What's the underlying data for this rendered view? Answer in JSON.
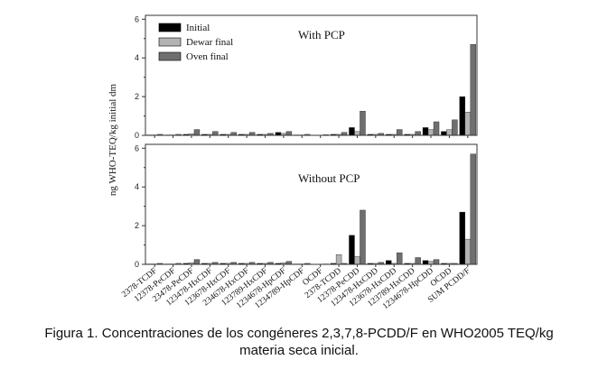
{
  "caption": {
    "line1": "Figura 1. Concentraciones de los congéneres 2,3,7,8-PCDD/F en WHO2005 TEQ/kg",
    "line2": "materia seca inicial."
  },
  "chart_data": [
    {
      "type": "bar",
      "title": "With PCP",
      "ylabel": "ng WHO-TEQ/kg initial dm",
      "ylim": [
        0,
        6.2
      ],
      "yticks": [
        0,
        2,
        4,
        6
      ],
      "grid": false,
      "legend_position": "top-left",
      "categories": [
        "2378-TCDF",
        "12378-PeCDF",
        "23478-PeCDF",
        "123478-HxCDF",
        "123678-HxCDF",
        "234678-HxCDF",
        "123789-HxCDF",
        "1234678-HpCDF",
        "1234789-HpCDF",
        "OCDF",
        "2378-TCDD",
        "12378-PeCDD",
        "123478-HxCDD",
        "123678-HxCDD",
        "123789-HxCDD",
        "1234678-HpCDD",
        "OCDD",
        "SUM PCDD/F"
      ],
      "series": [
        {
          "name": "Initial",
          "color": "#000000",
          "values": [
            0.02,
            0.02,
            0.05,
            0.05,
            0.05,
            0.05,
            0.05,
            0.15,
            0.02,
            0.0,
            0.05,
            0.4,
            0.05,
            0.05,
            0.05,
            0.4,
            0.2,
            2.0
          ]
        },
        {
          "name": "Dewar final",
          "color": "#b3b3b3",
          "values": [
            0.02,
            0.02,
            0.08,
            0.05,
            0.05,
            0.05,
            0.05,
            0.1,
            0.02,
            0.0,
            0.05,
            0.2,
            0.05,
            0.05,
            0.05,
            0.3,
            0.3,
            1.2
          ]
        },
        {
          "name": "Oven final",
          "color": "#6f6f6f",
          "values": [
            0.05,
            0.05,
            0.3,
            0.2,
            0.15,
            0.15,
            0.1,
            0.2,
            0.05,
            0.03,
            0.15,
            1.25,
            0.1,
            0.3,
            0.2,
            0.7,
            0.8,
            4.7
          ]
        }
      ]
    },
    {
      "type": "bar",
      "title": "Without PCP",
      "ylabel": "",
      "ylim": [
        0,
        6.2
      ],
      "yticks": [
        0,
        2,
        4,
        6
      ],
      "grid": false,
      "categories": [
        "2378-TCDF",
        "12378-PeCDF",
        "23478-PeCDF",
        "123478-HxCDF",
        "123678-HxCDF",
        "234678-HxCDF",
        "123789-HxCDF",
        "1234678-HpCDF",
        "1234789-HpCDF",
        "OCDF",
        "2378-TCDD",
        "12378-PeCDD",
        "123478-HxCDD",
        "123678-HxCDD",
        "123789-HxCDD",
        "1234678-HpCDD",
        "OCDD",
        "SUM PCDD/F"
      ],
      "series": [
        {
          "name": "Initial",
          "color": "#000000",
          "values": [
            0.02,
            0.02,
            0.05,
            0.05,
            0.05,
            0.05,
            0.05,
            0.05,
            0.02,
            0.0,
            0.05,
            1.5,
            0.05,
            0.2,
            0.05,
            0.2,
            0.05,
            2.7
          ]
        },
        {
          "name": "Dewar final",
          "color": "#b3b3b3",
          "values": [
            0.02,
            0.02,
            0.08,
            0.05,
            0.05,
            0.05,
            0.05,
            0.08,
            0.02,
            0.0,
            0.5,
            0.4,
            0.05,
            0.05,
            0.05,
            0.15,
            0.05,
            1.3
          ]
        },
        {
          "name": "Oven final",
          "color": "#6f6f6f",
          "values": [
            0.05,
            0.05,
            0.25,
            0.1,
            0.1,
            0.1,
            0.1,
            0.15,
            0.05,
            0.02,
            0.05,
            2.8,
            0.1,
            0.6,
            0.35,
            0.25,
            0.05,
            5.7
          ]
        }
      ]
    }
  ]
}
